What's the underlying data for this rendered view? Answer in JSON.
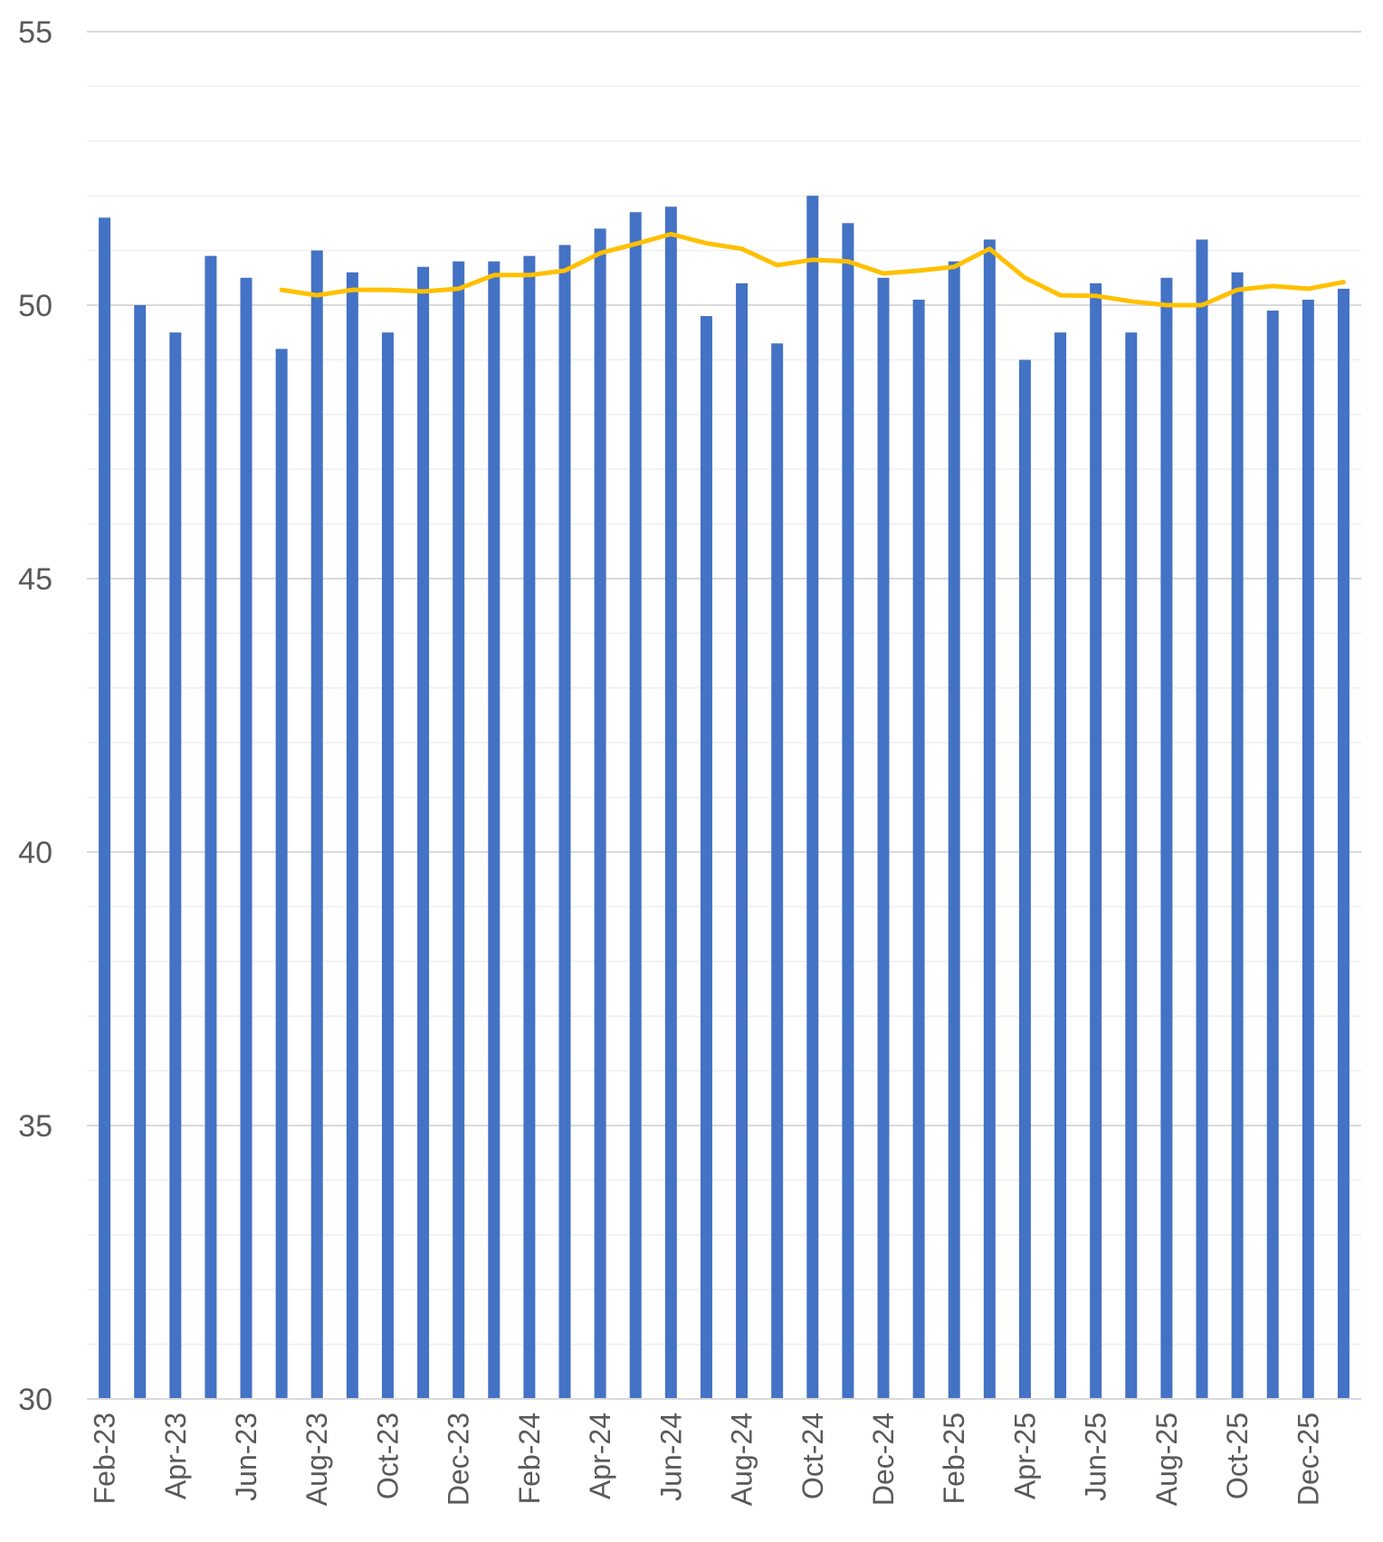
{
  "chart_data": {
    "type": "bar",
    "title": "",
    "xlabel": "",
    "ylabel": "",
    "ylim": [
      30,
      55
    ],
    "yticks": [
      30,
      35,
      40,
      45,
      50,
      55
    ],
    "grid": true,
    "legend": "none",
    "categories": [
      "Feb-23",
      "Mar-23",
      "Apr-23",
      "May-23",
      "Jun-23",
      "Jul-23",
      "Aug-23",
      "Sep-23",
      "Oct-23",
      "Nov-23",
      "Dec-23",
      "Jan-24",
      "Feb-24",
      "Mar-24",
      "Apr-24",
      "May-24",
      "Jun-24",
      "Jul-24",
      "Aug-24",
      "Sep-24",
      "Oct-24",
      "Nov-24",
      "Dec-24",
      "Jan-25",
      "Feb-25",
      "Mar-25",
      "Apr-25",
      "May-25",
      "Jun-25",
      "Jul-25",
      "Aug-25",
      "Sep-25",
      "Oct-25",
      "Nov-25",
      "Dec-25",
      "Jan-26"
    ],
    "x_tick_labels": [
      "Feb-23",
      "",
      "Apr-23",
      "",
      "Jun-23",
      "",
      "Aug-23",
      "",
      "Oct-23",
      "",
      "Dec-23",
      "",
      "Feb-24",
      "",
      "Apr-24",
      "",
      "Jun-24",
      "",
      "Aug-24",
      "",
      "Oct-24",
      "",
      "Dec-24",
      "",
      "Feb-25",
      "",
      "Apr-25",
      "",
      "Jun-25",
      "",
      "Aug-25",
      "",
      "Oct-25",
      "",
      "Dec-25",
      ""
    ],
    "series": [
      {
        "type": "bar",
        "color": "#4472C4",
        "values": [
          51.6,
          50.0,
          49.5,
          50.9,
          50.5,
          49.2,
          51.0,
          50.6,
          49.5,
          50.7,
          50.8,
          50.8,
          50.9,
          51.1,
          51.4,
          51.7,
          51.8,
          49.8,
          50.4,
          49.3,
          52.0,
          51.5,
          50.5,
          50.1,
          50.8,
          51.2,
          49.0,
          49.5,
          50.4,
          49.5,
          50.5,
          51.2,
          50.6,
          49.9,
          50.1,
          50.3
        ]
      },
      {
        "type": "line",
        "color": "#FFC000",
        "values": [
          null,
          null,
          null,
          null,
          null,
          50.28,
          50.18,
          50.28,
          50.28,
          50.25,
          50.3,
          50.55,
          50.55,
          50.63,
          50.95,
          51.12,
          51.3,
          51.13,
          51.03,
          50.73,
          50.83,
          50.8,
          50.58,
          50.63,
          50.7,
          51.03,
          50.5,
          50.18,
          50.17,
          50.07,
          50.0,
          50.0,
          50.28,
          50.35,
          50.3,
          50.42
        ]
      }
    ]
  }
}
